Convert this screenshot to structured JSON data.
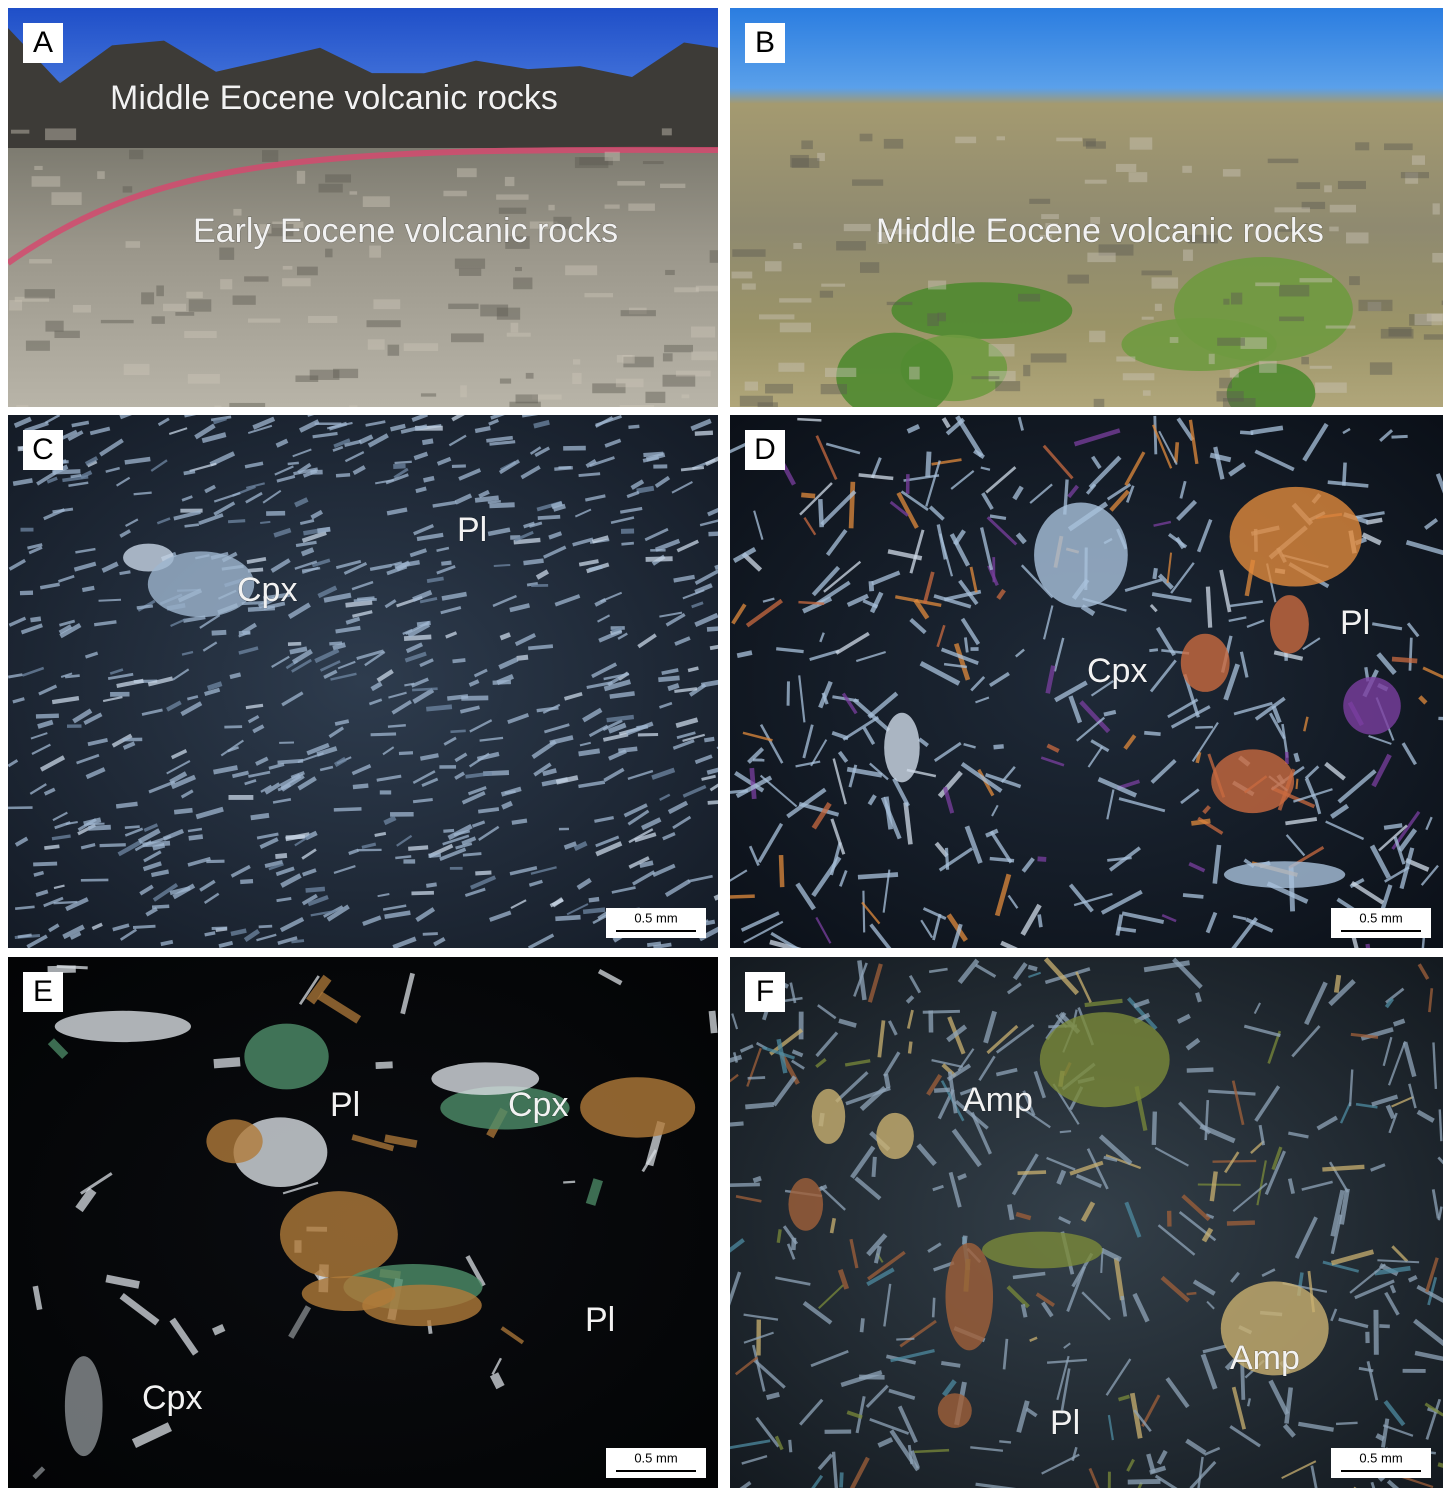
{
  "panels": [
    {
      "letter": "A",
      "labels": [
        "Middle Eocene volcanic rocks",
        "Early Eocene volcanic rocks"
      ]
    },
    {
      "letter": "B",
      "labels": [
        "Middle Eocene volcanic rocks"
      ]
    },
    {
      "letter": "C",
      "labels": [
        "Pl",
        "Cpx"
      ],
      "scale_bar": "0.5 mm"
    },
    {
      "letter": "D",
      "labels": [
        "Cpx",
        "Pl"
      ],
      "scale_bar": "0.5 mm"
    },
    {
      "letter": "E",
      "labels": [
        "Pl",
        "Cpx",
        "Pl",
        "Cpx"
      ],
      "scale_bar": "0.5 mm"
    },
    {
      "letter": "F",
      "labels": [
        "Amp",
        "Amp",
        "Pl"
      ],
      "scale_bar": "0.5 mm"
    }
  ]
}
